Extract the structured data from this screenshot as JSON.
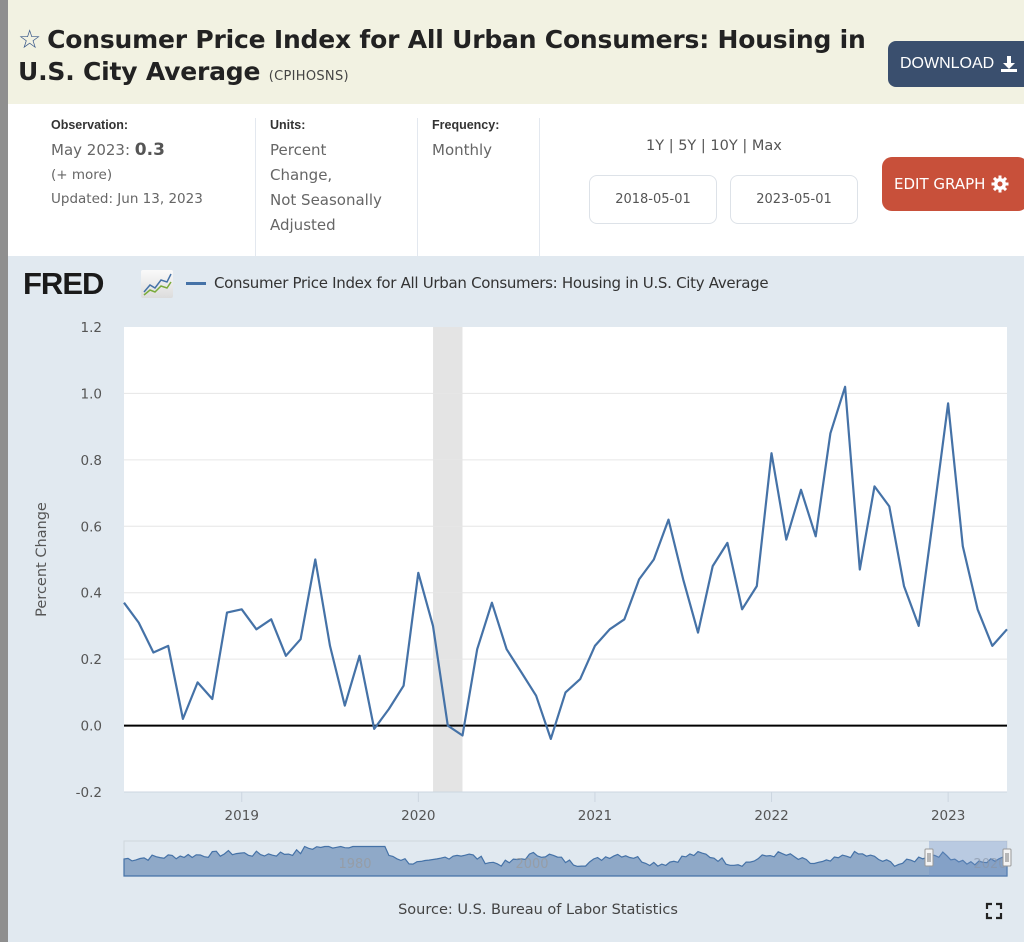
{
  "header": {
    "star_icon": "star-outline-icon",
    "title": "Consumer Price Index for All Urban Consumers: Housing in U.S. City Average",
    "series_id": "(CPIHOSNS)",
    "download_label": "DOWNLOAD",
    "download_icon": "download-icon"
  },
  "meta": {
    "observation": {
      "label": "Observation:",
      "period": "May 2023:",
      "value": "0.3",
      "more": "(+ more)",
      "updated": "Updated: Jun 13, 2023"
    },
    "units": {
      "label": "Units:",
      "lines": [
        "Percent",
        "Change,",
        "Not Seasonally",
        "Adjusted"
      ]
    },
    "frequency": {
      "label": "Frequency:",
      "value": "Monthly"
    },
    "range_links": [
      "1Y",
      "5Y",
      "10Y",
      "Max"
    ],
    "range_separator": "|",
    "start_date": "2018-05-01",
    "end_date": "2023-05-01",
    "edit_graph_label": "EDIT GRAPH",
    "edit_graph_icon": "gear-icon"
  },
  "chart_header": {
    "logo_text": "FRED",
    "logo_icon": "fred-chart-icon",
    "legend_label": "Consumer Price Index for All Urban Consumers: Housing in U.S. City Average"
  },
  "colors": {
    "series": "#4572a7",
    "download_button": "#3a4f6e",
    "edit_button": "#c8503a",
    "header_bg": "#f2f2e2",
    "chart_bg": "#e1e9f0",
    "recession": "#e4e4e4"
  },
  "chart_data": {
    "type": "line",
    "title": "Consumer Price Index for All Urban Consumers: Housing in U.S. City Average",
    "xlabel": "",
    "ylabel": "Percent Change",
    "ylim": [
      -0.2,
      1.2
    ],
    "yticks": [
      -0.2,
      0.0,
      0.2,
      0.4,
      0.6,
      0.8,
      1.0,
      1.2
    ],
    "ytick_labels": [
      "-0.2",
      "0.0",
      "0.2",
      "0.4",
      "0.6",
      "0.8",
      "1.0",
      "1.2"
    ],
    "xlim": [
      "2018-05",
      "2023-05"
    ],
    "xtick_labels": [
      "2019",
      "2020",
      "2021",
      "2022",
      "2023"
    ],
    "grid": true,
    "zero_line": true,
    "legend": "top-left",
    "recession_shading": [
      {
        "start": "2020-02",
        "end": "2020-04"
      }
    ],
    "series": [
      {
        "name": "Consumer Price Index for All Urban Consumers: Housing in U.S. City Average",
        "x": [
          "2018-05",
          "2018-06",
          "2018-07",
          "2018-08",
          "2018-09",
          "2018-10",
          "2018-11",
          "2018-12",
          "2019-01",
          "2019-02",
          "2019-03",
          "2019-04",
          "2019-05",
          "2019-06",
          "2019-07",
          "2019-08",
          "2019-09",
          "2019-10",
          "2019-11",
          "2019-12",
          "2020-01",
          "2020-02",
          "2020-03",
          "2020-04",
          "2020-05",
          "2020-06",
          "2020-07",
          "2020-08",
          "2020-09",
          "2020-10",
          "2020-11",
          "2020-12",
          "2021-01",
          "2021-02",
          "2021-03",
          "2021-04",
          "2021-05",
          "2021-06",
          "2021-07",
          "2021-08",
          "2021-09",
          "2021-10",
          "2021-11",
          "2021-12",
          "2022-01",
          "2022-02",
          "2022-03",
          "2022-04",
          "2022-05",
          "2022-06",
          "2022-07",
          "2022-08",
          "2022-09",
          "2022-10",
          "2022-11",
          "2022-12",
          "2023-01",
          "2023-02",
          "2023-03",
          "2023-04",
          "2023-05"
        ],
        "values": [
          0.37,
          0.31,
          0.22,
          0.24,
          0.02,
          0.13,
          0.08,
          0.34,
          0.35,
          0.29,
          0.32,
          0.21,
          0.26,
          0.5,
          0.24,
          0.06,
          0.21,
          -0.01,
          0.05,
          0.12,
          0.46,
          0.3,
          0.0,
          -0.03,
          0.23,
          0.37,
          0.23,
          0.16,
          0.09,
          -0.04,
          0.1,
          0.14,
          0.24,
          0.29,
          0.32,
          0.44,
          0.5,
          0.62,
          0.44,
          0.28,
          0.48,
          0.55,
          0.35,
          0.42,
          0.82,
          0.56,
          0.71,
          0.57,
          0.88,
          1.02,
          0.47,
          0.72,
          0.66,
          0.42,
          0.3,
          0.63,
          0.97,
          0.54,
          0.35,
          0.24,
          0.29
        ]
      }
    ],
    "navigator": {
      "labels": [
        "1980",
        "2000",
        "2020"
      ]
    }
  },
  "footer": {
    "source": "Source: U.S. Bureau of Labor Statistics",
    "fullscreen_icon": "fullscreen-icon"
  }
}
